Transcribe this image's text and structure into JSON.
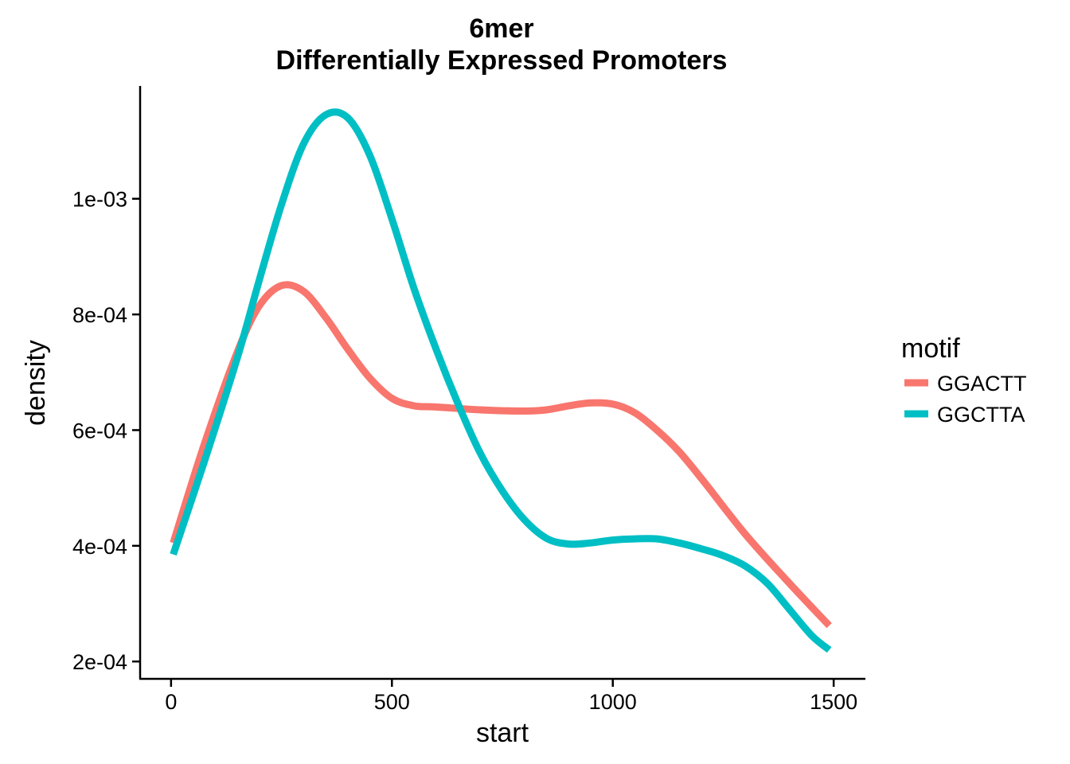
{
  "chart_data": {
    "type": "line",
    "title": "6mer",
    "subtitle": "Differentially Expressed Promoters",
    "xlabel": "start",
    "ylabel": "density",
    "xlim": [
      -70,
      1570
    ],
    "ylim": [
      0.00017,
      0.001195
    ],
    "x_ticks": [
      0,
      500,
      1000,
      1500
    ],
    "x_tick_labels": [
      "0",
      "500",
      "1000",
      "1500"
    ],
    "y_ticks": [
      0.0002,
      0.0004,
      0.0006,
      0.0008,
      0.001
    ],
    "y_tick_labels": [
      "2e-04",
      "4e-04",
      "6e-04",
      "8e-04",
      "1e-03"
    ],
    "grid": false,
    "legend": {
      "title": "motif",
      "position": "right"
    },
    "series": [
      {
        "name": "GGACTT",
        "color": "#F8766D",
        "x": [
          5,
          75,
          150,
          200,
          250,
          300,
          350,
          400,
          450,
          500,
          550,
          600,
          700,
          800,
          850,
          900,
          950,
          1000,
          1050,
          1100,
          1150,
          1200,
          1300,
          1400,
          1490
        ],
        "y": [
          0.000405,
          0.000575,
          0.000735,
          0.000815,
          0.00085,
          0.00084,
          0.000795,
          0.00074,
          0.00069,
          0.000655,
          0.000642,
          0.00064,
          0.000635,
          0.000633,
          0.000635,
          0.000642,
          0.000647,
          0.000645,
          0.00063,
          0.0006,
          0.000563,
          0.000517,
          0.00042,
          0.000335,
          0.000262
        ]
      },
      {
        "name": "GGCTTA",
        "color": "#00BFC4",
        "x": [
          5,
          75,
          150,
          200,
          250,
          300,
          350,
          400,
          450,
          500,
          550,
          600,
          650,
          700,
          750,
          800,
          850,
          900,
          950,
          1000,
          1050,
          1100,
          1150,
          1200,
          1250,
          1300,
          1350,
          1400,
          1450,
          1490
        ],
        "y": [
          0.000385,
          0.000545,
          0.000725,
          0.00086,
          0.00099,
          0.001095,
          0.001145,
          0.00114,
          0.001075,
          0.000965,
          0.000845,
          0.00074,
          0.000645,
          0.00056,
          0.000495,
          0.000445,
          0.000413,
          0.000403,
          0.000405,
          0.00041,
          0.000412,
          0.000412,
          0.000405,
          0.000395,
          0.000383,
          0.000365,
          0.000335,
          0.00029,
          0.000245,
          0.00022
        ]
      }
    ]
  }
}
